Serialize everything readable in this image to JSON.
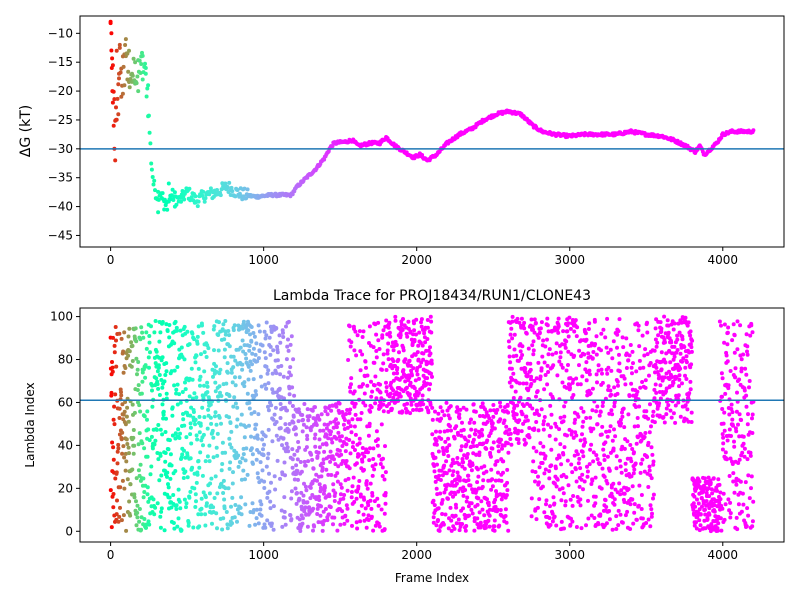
{
  "chart_data": [
    {
      "type": "scatter",
      "title": "",
      "xlabel": "",
      "ylabel": "ΔG (kT)",
      "xlim": [
        -200,
        4400
      ],
      "ylim": [
        -47,
        -7
      ],
      "xticks": [
        0,
        1000,
        2000,
        3000,
        4000
      ],
      "yticks": [
        -10,
        -15,
        -20,
        -25,
        -30,
        -35,
        -40,
        -45
      ],
      "hline": {
        "y": -30,
        "color": "#1f77b4"
      },
      "colormap": "rainbow",
      "points_color_by": "time",
      "series": [
        {
          "trace": [
            [
              0,
              -9
            ],
            [
              10,
              -15
            ],
            [
              20,
              -21
            ],
            [
              40,
              -26
            ],
            [
              60,
              -14
            ],
            [
              80,
              -19
            ],
            [
              100,
              -12
            ],
            [
              130,
              -20
            ],
            [
              150,
              -16
            ],
            [
              170,
              -18
            ],
            [
              200,
              -15
            ],
            [
              220,
              -16
            ],
            [
              240,
              -20
            ],
            [
              255,
              -27
            ],
            [
              265,
              -32
            ],
            [
              280,
              -36
            ],
            [
              300,
              -38
            ],
            [
              330,
              -37.5
            ],
            [
              360,
              -40
            ],
            [
              400,
              -38
            ],
            [
              450,
              -39
            ],
            [
              500,
              -37.5
            ],
            [
              560,
              -39
            ],
            [
              620,
              -38
            ],
            [
              700,
              -37.5
            ],
            [
              760,
              -36.5
            ],
            [
              820,
              -37.5
            ],
            [
              880,
              -38
            ],
            [
              950,
              -38.3
            ],
            [
              1050,
              -38
            ],
            [
              1120,
              -38
            ],
            [
              1180,
              -38
            ],
            [
              1220,
              -36.5
            ],
            [
              1280,
              -35
            ],
            [
              1340,
              -33.5
            ],
            [
              1400,
              -31.5
            ],
            [
              1430,
              -30
            ],
            [
              1460,
              -29
            ],
            [
              1530,
              -28.8
            ],
            [
              1580,
              -28.5
            ],
            [
              1620,
              -29.5
            ],
            [
              1700,
              -29
            ],
            [
              1760,
              -29
            ],
            [
              1800,
              -28
            ],
            [
              1860,
              -29.5
            ],
            [
              1920,
              -30.5
            ],
            [
              1980,
              -31.5
            ],
            [
              2020,
              -31
            ],
            [
              2070,
              -32
            ],
            [
              2130,
              -31
            ],
            [
              2200,
              -29
            ],
            [
              2280,
              -27.5
            ],
            [
              2360,
              -26.5
            ],
            [
              2440,
              -25
            ],
            [
              2520,
              -24
            ],
            [
              2600,
              -23.5
            ],
            [
              2680,
              -24
            ],
            [
              2760,
              -26
            ],
            [
              2820,
              -27
            ],
            [
              2900,
              -27.5
            ],
            [
              3000,
              -27.8
            ],
            [
              3100,
              -27.5
            ],
            [
              3200,
              -27.5
            ],
            [
              3300,
              -27.5
            ],
            [
              3400,
              -27
            ],
            [
              3500,
              -27.5
            ],
            [
              3600,
              -27.8
            ],
            [
              3680,
              -28.5
            ],
            [
              3760,
              -29.5
            ],
            [
              3820,
              -30.5
            ],
            [
              3850,
              -29.5
            ],
            [
              3880,
              -31
            ],
            [
              3920,
              -30
            ],
            [
              3960,
              -29
            ],
            [
              4000,
              -27.5
            ],
            [
              4060,
              -27
            ],
            [
              4200,
              -27
            ]
          ],
          "scatter_early": [
            [
              0,
              -8
            ],
            [
              5,
              -10
            ],
            [
              8,
              -16
            ],
            [
              12,
              -20
            ],
            [
              15,
              -22
            ],
            [
              20,
              -26
            ],
            [
              25,
              -30
            ],
            [
              30,
              -32
            ],
            [
              35,
              -25
            ],
            [
              40,
              -13
            ],
            [
              50,
              -24
            ],
            [
              55,
              -17
            ],
            [
              60,
              -12
            ],
            [
              70,
              -21
            ],
            [
              80,
              -14
            ],
            [
              90,
              -19
            ],
            [
              100,
              -11
            ],
            [
              110,
              -18
            ],
            [
              120,
              -13
            ],
            [
              140,
              -17
            ],
            [
              160,
              -15
            ],
            [
              180,
              -20
            ],
            [
              200,
              -14
            ],
            [
              210,
              -18
            ],
            [
              230,
              -16
            ],
            [
              245,
              -19
            ],
            [
              310,
              -41
            ],
            [
              350,
              -40.5
            ],
            [
              380,
              -36
            ],
            [
              420,
              -40
            ],
            [
              460,
              -38.5
            ]
          ]
        }
      ]
    },
    {
      "type": "scatter",
      "title": "Lambda Trace for PROJ18434/RUN1/CLONE43",
      "xlabel": "Frame Index",
      "ylabel": "Lambda Index",
      "xlim": [
        -200,
        4400
      ],
      "ylim": [
        -5,
        104
      ],
      "xticks": [
        0,
        1000,
        2000,
        3000,
        4000
      ],
      "yticks": [
        0,
        20,
        40,
        60,
        80,
        100
      ],
      "hline": {
        "y": 61,
        "color": "#1f77b4"
      },
      "colormap": "rainbow",
      "points_color_by": "time",
      "n_points": 4200,
      "frames_max": 4200
    }
  ]
}
